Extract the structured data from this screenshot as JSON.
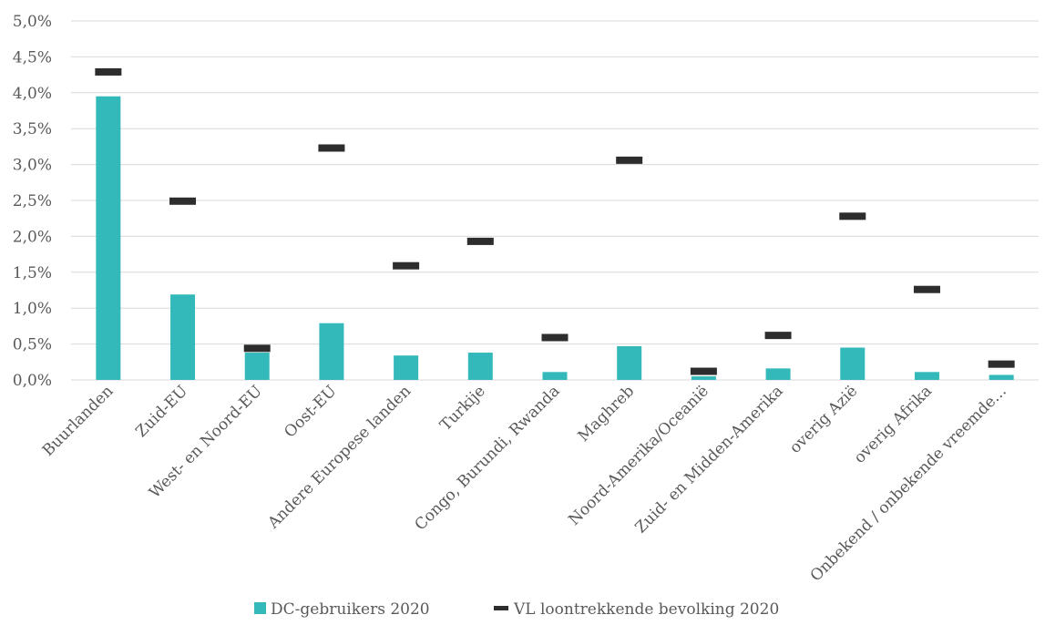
{
  "chart_data": {
    "type": "bar",
    "categories": [
      "Buurlanden",
      "Zuid-EU",
      "West- en Noord-EU",
      "Oost-EU",
      "Andere Europese landen",
      "Turkije",
      "Congo, Burundi, Rwanda",
      "Maghreb",
      "Noord-Amerika/Oceanië",
      "Zuid- en Midden-Amerika",
      "overig Azië",
      "overig Afrika",
      "Onbekend / onbekende vreemde..."
    ],
    "series": [
      {
        "name": "DC-gebruikers 2020",
        "type": "bar",
        "color": "#33b9ba",
        "values": [
          3.95,
          1.19,
          0.38,
          0.79,
          0.34,
          0.38,
          0.11,
          0.47,
          0.05,
          0.16,
          0.45,
          0.11,
          0.07
        ]
      },
      {
        "name": "VL loontrekkende bevolking 2020",
        "type": "marker",
        "color": "#2d2d2d",
        "values": [
          4.29,
          2.49,
          0.44,
          3.23,
          1.59,
          1.93,
          0.59,
          3.06,
          0.12,
          0.62,
          2.28,
          1.26,
          0.22
        ]
      }
    ],
    "yticks": [
      "0,0%",
      "0,5%",
      "1,0%",
      "1,5%",
      "2,0%",
      "2,5%",
      "3,0%",
      "3,5%",
      "4,0%",
      "4,5%",
      "5,0%"
    ],
    "ylim": [
      0,
      5
    ],
    "grid": true,
    "legend": "bottom"
  }
}
